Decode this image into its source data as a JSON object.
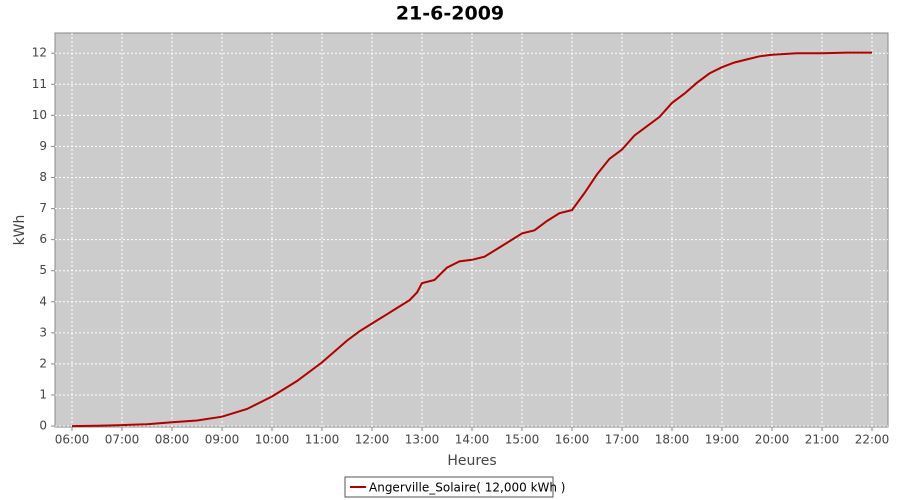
{
  "chart_data": {
    "type": "line",
    "title": "21-6-2009",
    "x_label": "Heures",
    "y_label": "kWh",
    "x": [
      6,
      6.5,
      7,
      7.5,
      8,
      8.5,
      9,
      9.5,
      10,
      10.5,
      11,
      11.25,
      11.5,
      11.75,
      12,
      12.25,
      12.5,
      12.75,
      12.9,
      13,
      13.25,
      13.5,
      13.75,
      14,
      14.25,
      14.5,
      15,
      15.25,
      15.5,
      15.75,
      16,
      16.25,
      16.5,
      16.75,
      17,
      17.25,
      17.5,
      17.75,
      18,
      18.25,
      18.5,
      18.75,
      19,
      19.25,
      19.5,
      19.75,
      20,
      20.5,
      21,
      21.5,
      22
    ],
    "series": [
      {
        "name": "Angerville_Solaire( 12,000 kWh )",
        "color": "#b00000",
        "values": [
          0,
          0.01,
          0.03,
          0.06,
          0.12,
          0.18,
          0.3,
          0.55,
          0.95,
          1.45,
          2.05,
          2.4,
          2.75,
          3.05,
          3.3,
          3.55,
          3.8,
          4.05,
          4.3,
          4.6,
          4.7,
          5.1,
          5.3,
          5.35,
          5.45,
          5.7,
          6.2,
          6.3,
          6.6,
          6.85,
          6.95,
          7.5,
          8.1,
          8.6,
          8.9,
          9.35,
          9.65,
          9.95,
          10.4,
          10.7,
          11.05,
          11.35,
          11.55,
          11.7,
          11.8,
          11.9,
          11.95,
          12.0,
          12.0,
          12.02,
          12.02
        ]
      }
    ],
    "xlim": [
      5.66,
      22.32
    ],
    "ylim": [
      -0.03,
      12.65
    ],
    "xticks": [
      {
        "value": 6,
        "label": "06:00"
      },
      {
        "value": 7,
        "label": "07:00"
      },
      {
        "value": 8,
        "label": "08:00"
      },
      {
        "value": 9,
        "label": "09:00"
      },
      {
        "value": 10,
        "label": "10:00"
      },
      {
        "value": 11,
        "label": "11:00"
      },
      {
        "value": 12,
        "label": "12:00"
      },
      {
        "value": 13,
        "label": "13:00"
      },
      {
        "value": 14,
        "label": "14:00"
      },
      {
        "value": 15,
        "label": "15:00"
      },
      {
        "value": 16,
        "label": "16:00"
      },
      {
        "value": 17,
        "label": "17:00"
      },
      {
        "value": 18,
        "label": "18:00"
      },
      {
        "value": 19,
        "label": "19:00"
      },
      {
        "value": 20,
        "label": "20:00"
      },
      {
        "value": 21,
        "label": "21:00"
      },
      {
        "value": 22,
        "label": "22:00"
      }
    ],
    "yticks": [
      0,
      1,
      2,
      3,
      4,
      5,
      6,
      7,
      8,
      9,
      10,
      11,
      12
    ],
    "grid": true,
    "legend": "bottom"
  }
}
